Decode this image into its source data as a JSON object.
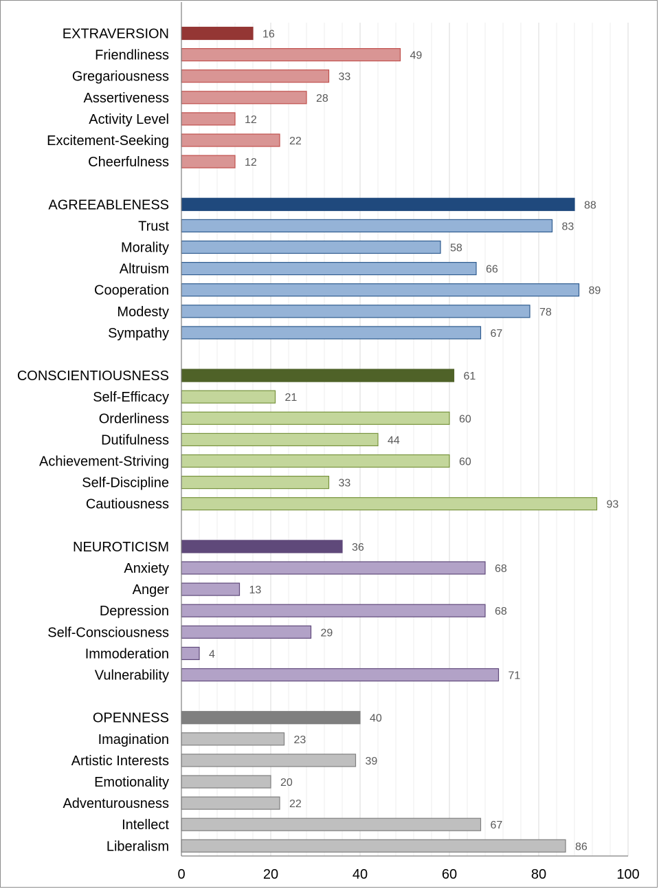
{
  "chart_data": {
    "type": "bar",
    "orientation": "horizontal",
    "title": "",
    "xlabel": "",
    "ylabel": "",
    "xlim": [
      0,
      100
    ],
    "xticks": [
      0,
      20,
      40,
      60,
      80,
      100
    ],
    "grid": true,
    "groups": [
      {
        "name": "EXTRAVERSION",
        "value": 16,
        "color": "#943634",
        "facet_color": "#d99594",
        "facet_border": "#c0504d",
        "facets": [
          {
            "name": "Friendliness",
            "value": 49
          },
          {
            "name": "Gregariousness",
            "value": 33
          },
          {
            "name": "Assertiveness",
            "value": 28
          },
          {
            "name": "Activity Level",
            "value": 12
          },
          {
            "name": "Excitement-Seeking",
            "value": 22
          },
          {
            "name": "Cheerfulness",
            "value": 12
          }
        ]
      },
      {
        "name": "AGREEABLENESS",
        "value": 88,
        "color": "#1f497d",
        "facet_color": "#95b3d7",
        "facet_border": "#2f5c8f",
        "facets": [
          {
            "name": "Trust",
            "value": 83
          },
          {
            "name": "Morality",
            "value": 58
          },
          {
            "name": "Altruism",
            "value": 66
          },
          {
            "name": "Cooperation",
            "value": 89
          },
          {
            "name": "Modesty",
            "value": 78
          },
          {
            "name": "Sympathy",
            "value": 67
          }
        ]
      },
      {
        "name": "CONSCIENTIOUSNESS",
        "value": 61,
        "color": "#4f6228",
        "facet_color": "#c3d69b",
        "facet_border": "#77933c",
        "facets": [
          {
            "name": "Self-Efficacy",
            "value": 21
          },
          {
            "name": "Orderliness",
            "value": 60
          },
          {
            "name": "Dutifulness",
            "value": 44
          },
          {
            "name": "Achievement-Striving",
            "value": 60
          },
          {
            "name": "Self-Discipline",
            "value": 33
          },
          {
            "name": "Cautiousness",
            "value": 93
          }
        ]
      },
      {
        "name": "NEUROTICISM",
        "value": 36,
        "color": "#5f497a",
        "facet_color": "#b2a2c7",
        "facet_border": "#5f497a",
        "facets": [
          {
            "name": "Anxiety",
            "value": 68
          },
          {
            "name": "Anger",
            "value": 13
          },
          {
            "name": "Depression",
            "value": 68
          },
          {
            "name": "Self-Consciousness",
            "value": 29
          },
          {
            "name": "Immoderation",
            "value": 4
          },
          {
            "name": "Vulnerability",
            "value": 71
          }
        ]
      },
      {
        "name": "OPENNESS",
        "value": 40,
        "color": "#7f7f7f",
        "facet_color": "#bfbfbf",
        "facet_border": "#7f7f7f",
        "facets": [
          {
            "name": "Imagination",
            "value": 23
          },
          {
            "name": "Artistic Interests",
            "value": 39
          },
          {
            "name": "Emotionality",
            "value": 20
          },
          {
            "name": "Adventurousness",
            "value": 22
          },
          {
            "name": "Intellect",
            "value": 67
          },
          {
            "name": "Liberalism",
            "value": 86
          }
        ]
      }
    ]
  }
}
